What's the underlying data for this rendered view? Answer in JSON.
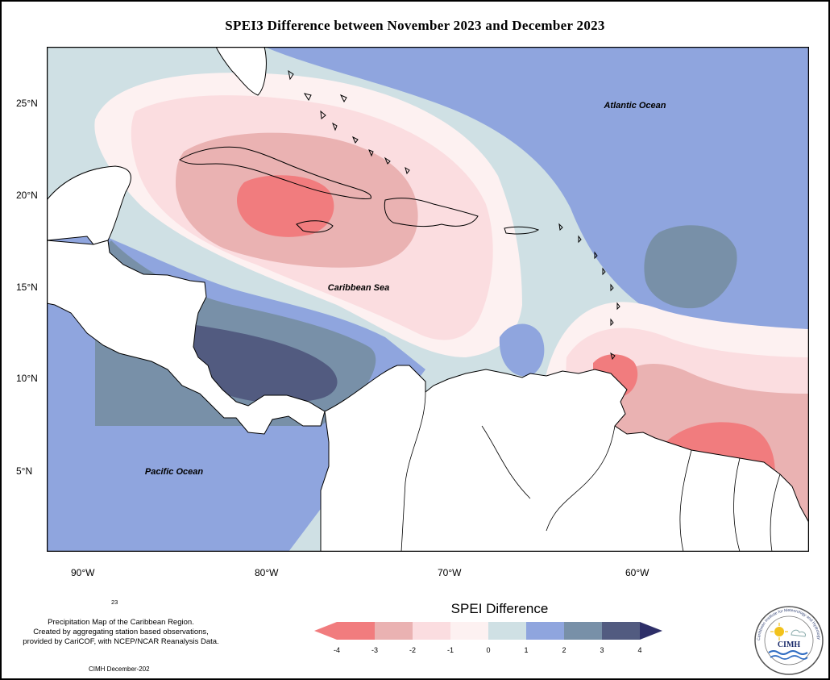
{
  "title": "SPEI3 Difference between November 2023 and December 2023",
  "map": {
    "labels": {
      "atlantic": "Atlantic Ocean",
      "caribbean": "Caribbean Sea",
      "pacific": "Pacific Ocean"
    },
    "lat_labels": [
      "25°N",
      "20°N",
      "15°N",
      "10°N",
      "5°N"
    ],
    "lon_labels": [
      "90°W",
      "80°W",
      "70°W",
      "60°W"
    ]
  },
  "colors": {
    "c_m4": "#f17c7e",
    "c_m3": "#eab2b2",
    "c_m2": "#fbdde0",
    "c_m1": "#fdf1f1",
    "c_0": "#cfe0e4",
    "c_1": "#8fa5de",
    "c_2": "#7890a8",
    "c_3": "#525b80",
    "c_4": "#2e2f68",
    "land": "#ffffff"
  },
  "legend": {
    "title": "SPEI Difference",
    "ticks": [
      "-4",
      "-3",
      "-2",
      "-1",
      "0",
      "1",
      "2",
      "3",
      "4"
    ]
  },
  "footer": {
    "year_fragment": "23",
    "credit_line1": "Precipitation Map of the Caribbean Region.",
    "credit_line2": "Created by aggregating station based observations,",
    "credit_line3": "provided by CariCOF, with NCEP/NCAR Reanalysis Data.",
    "date": "CIMH December-202"
  },
  "logo": {
    "text": "CIMH",
    "ring_text": "Caribbean Institute for Meteorology and Hydrology"
  }
}
